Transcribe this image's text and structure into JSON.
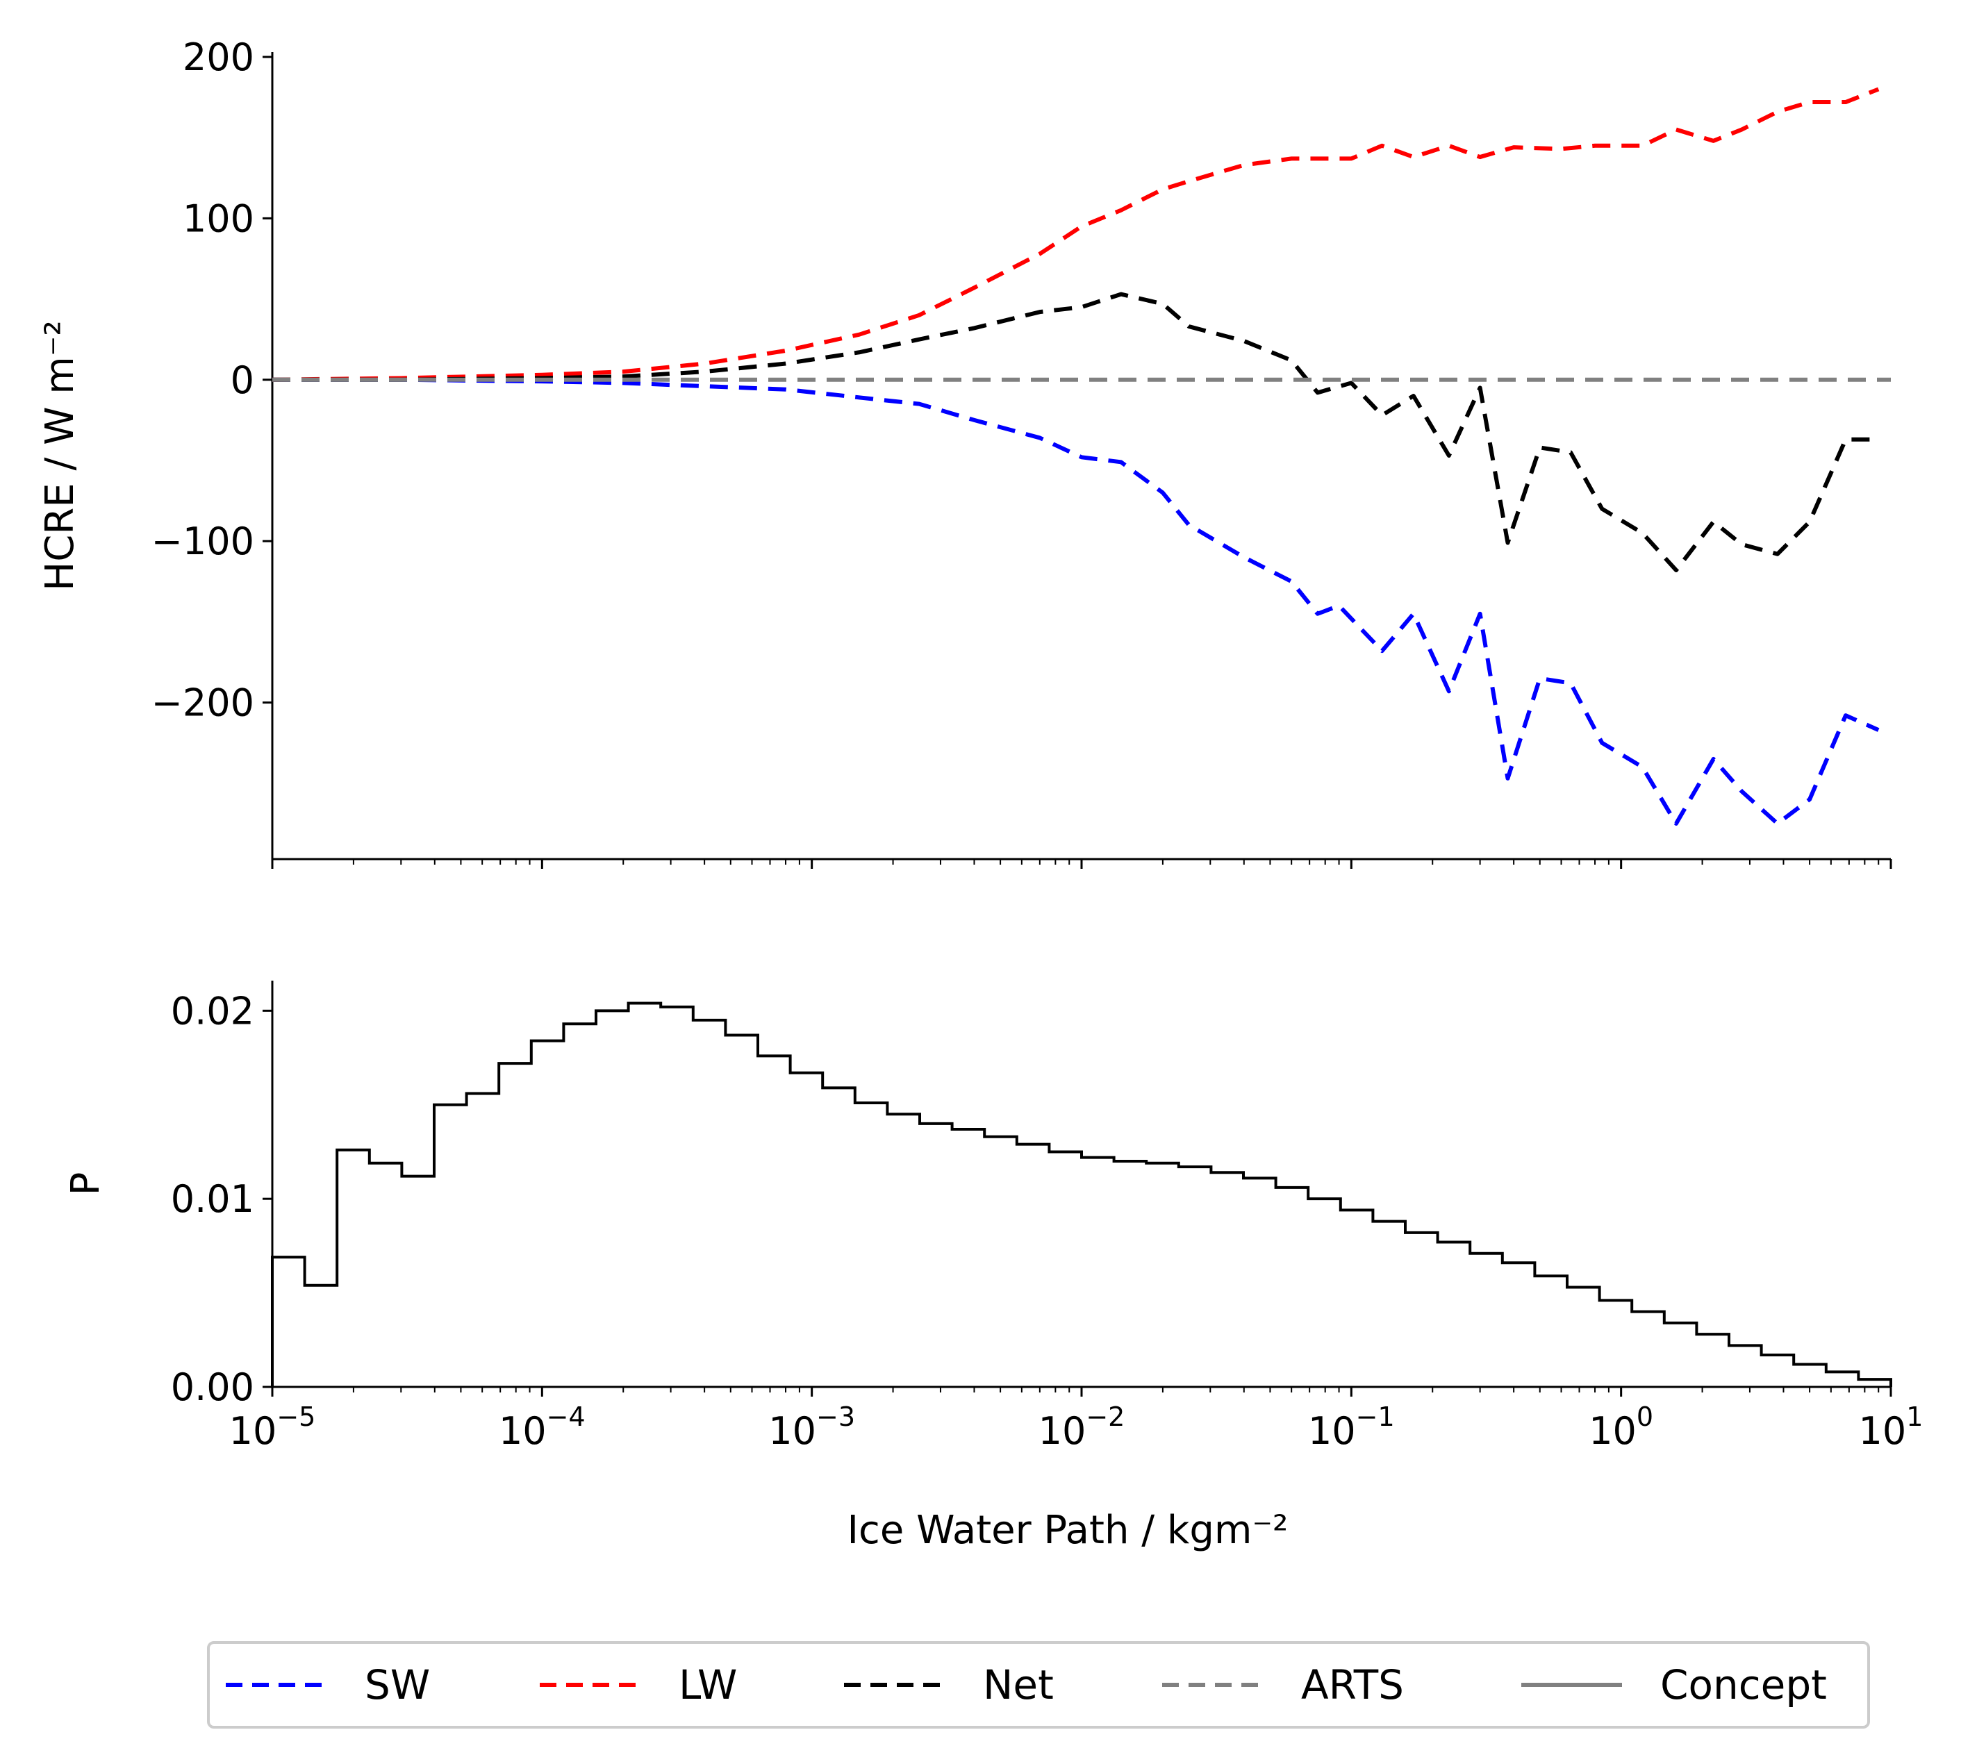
{
  "chart_data": [
    {
      "type": "line",
      "title": "",
      "xlabel": "",
      "ylabel": "HCRE / W m⁻²",
      "xscale": "log",
      "xlim": [
        1e-05,
        10
      ],
      "ylim": [
        -297,
        203
      ],
      "yticks": [
        {
          "value": 200,
          "label": "200"
        },
        {
          "value": 100,
          "label": "100"
        },
        {
          "value": 0,
          "label": "0"
        },
        {
          "value": -100,
          "label": "−100"
        },
        {
          "value": -200,
          "label": "−200"
        }
      ],
      "grid": false,
      "series": [
        {
          "name": "SW",
          "color": "#0000ff",
          "style": "dashed",
          "points": [
            [
              1e-05,
              0
            ],
            [
              3e-05,
              0
            ],
            [
              0.0001,
              -1
            ],
            [
              0.0002,
              -2
            ],
            [
              0.0004,
              -4
            ],
            [
              0.0008,
              -6
            ],
            [
              0.0015,
              -11
            ],
            [
              0.0025,
              -15
            ],
            [
              0.004,
              -25
            ],
            [
              0.007,
              -36
            ],
            [
              0.01,
              -48
            ],
            [
              0.014,
              -51
            ],
            [
              0.02,
              -70
            ],
            [
              0.025,
              -90
            ],
            [
              0.04,
              -110
            ],
            [
              0.06,
              -125
            ],
            [
              0.075,
              -145
            ],
            [
              0.09,
              -140
            ],
            [
              0.13,
              -168
            ],
            [
              0.17,
              -145
            ],
            [
              0.23,
              -193
            ],
            [
              0.3,
              -145
            ],
            [
              0.38,
              -247
            ],
            [
              0.5,
              -185
            ],
            [
              0.65,
              -188
            ],
            [
              0.85,
              -225
            ],
            [
              1.2,
              -240
            ],
            [
              1.6,
              -275
            ],
            [
              2.2,
              -235
            ],
            [
              2.8,
              -255
            ],
            [
              3.8,
              -275
            ],
            [
              5.0,
              -260
            ],
            [
              6.8,
              -208
            ],
            [
              9.0,
              -217
            ]
          ]
        },
        {
          "name": "LW",
          "color": "#ff0000",
          "style": "dashed",
          "points": [
            [
              1e-05,
              0
            ],
            [
              3e-05,
              1
            ],
            [
              0.0001,
              3
            ],
            [
              0.0002,
              5
            ],
            [
              0.0004,
              10
            ],
            [
              0.0008,
              18
            ],
            [
              0.0015,
              28
            ],
            [
              0.0025,
              40
            ],
            [
              0.004,
              57
            ],
            [
              0.007,
              78
            ],
            [
              0.01,
              95
            ],
            [
              0.014,
              105
            ],
            [
              0.02,
              118
            ],
            [
              0.025,
              123
            ],
            [
              0.04,
              133
            ],
            [
              0.06,
              137
            ],
            [
              0.08,
              137
            ],
            [
              0.1,
              137
            ],
            [
              0.13,
              145
            ],
            [
              0.17,
              138
            ],
            [
              0.23,
              145
            ],
            [
              0.3,
              138
            ],
            [
              0.4,
              144
            ],
            [
              0.6,
              143
            ],
            [
              0.8,
              145
            ],
            [
              1.2,
              145
            ],
            [
              1.6,
              155
            ],
            [
              2.2,
              148
            ],
            [
              2.8,
              155
            ],
            [
              3.8,
              166
            ],
            [
              5.0,
              172
            ],
            [
              6.8,
              172
            ],
            [
              9.0,
              180
            ]
          ]
        },
        {
          "name": "Net",
          "color": "#000000",
          "style": "dashed",
          "points": [
            [
              1e-05,
              0
            ],
            [
              3e-05,
              0
            ],
            [
              0.0001,
              1
            ],
            [
              0.0002,
              2
            ],
            [
              0.0004,
              5
            ],
            [
              0.0008,
              10
            ],
            [
              0.0015,
              17
            ],
            [
              0.0025,
              25
            ],
            [
              0.004,
              32
            ],
            [
              0.007,
              42
            ],
            [
              0.01,
              45
            ],
            [
              0.014,
              53
            ],
            [
              0.02,
              47
            ],
            [
              0.025,
              33
            ],
            [
              0.04,
              24
            ],
            [
              0.06,
              12
            ],
            [
              0.075,
              -8
            ],
            [
              0.1,
              -2
            ],
            [
              0.13,
              -22
            ],
            [
              0.17,
              -10
            ],
            [
              0.23,
              -47
            ],
            [
              0.3,
              -5
            ],
            [
              0.38,
              -101
            ],
            [
              0.5,
              -42
            ],
            [
              0.65,
              -45
            ],
            [
              0.85,
              -80
            ],
            [
              1.2,
              -95
            ],
            [
              1.6,
              -118
            ],
            [
              2.2,
              -88
            ],
            [
              2.8,
              -102
            ],
            [
              3.8,
              -108
            ],
            [
              5.0,
              -88
            ],
            [
              6.8,
              -37
            ],
            [
              9.0,
              -37
            ]
          ]
        },
        {
          "name": "ARTS",
          "color": "#808080",
          "style": "dashed",
          "points": [
            [
              1e-05,
              0
            ],
            [
              10,
              0
            ]
          ]
        }
      ]
    },
    {
      "type": "step",
      "title": "",
      "xlabel": "Ice Water Path / kgm⁻²",
      "ylabel": "P",
      "xscale": "log",
      "xlim": [
        1e-05,
        10
      ],
      "ylim": [
        0,
        0.0216
      ],
      "yticks": [
        {
          "value": 0,
          "label": "0.00"
        },
        {
          "value": 0.01,
          "label": "0.01"
        },
        {
          "value": 0.02,
          "label": "0.02"
        }
      ],
      "xticks": [
        {
          "value": 1e-05,
          "base": "10",
          "exp": "−5"
        },
        {
          "value": 0.0001,
          "base": "10",
          "exp": "−4"
        },
        {
          "value": 0.001,
          "base": "10",
          "exp": "−3"
        },
        {
          "value": 0.01,
          "base": "10",
          "exp": "−2"
        },
        {
          "value": 0.1,
          "base": "10",
          "exp": "−1"
        },
        {
          "value": 1,
          "base": "10",
          "exp": "0"
        },
        {
          "value": 10,
          "base": "10",
          "exp": "1"
        }
      ],
      "grid": false,
      "series": [
        {
          "name": "",
          "color": "#000000",
          "style": "steps",
          "values": [
            0.0069,
            0.0054,
            0.0126,
            0.0119,
            0.0112,
            0.015,
            0.0156,
            0.0172,
            0.0184,
            0.0193,
            0.02,
            0.0204,
            0.0202,
            0.0195,
            0.0187,
            0.0176,
            0.0167,
            0.0159,
            0.0151,
            0.0145,
            0.014,
            0.0137,
            0.0133,
            0.0129,
            0.0125,
            0.0122,
            0.012,
            0.0119,
            0.0117,
            0.0114,
            0.0111,
            0.0106,
            0.01,
            0.0094,
            0.0088,
            0.0082,
            0.0077,
            0.0071,
            0.0066,
            0.0059,
            0.0053,
            0.0046,
            0.004,
            0.0034,
            0.0028,
            0.0022,
            0.0017,
            0.0012,
            0.0008,
            0.0004
          ]
        }
      ]
    }
  ],
  "legend": {
    "placement": "bottom-center",
    "items": [
      {
        "label": "SW",
        "color": "#0000ff",
        "style": "dashed"
      },
      {
        "label": "LW",
        "color": "#ff0000",
        "style": "dashed"
      },
      {
        "label": "Net",
        "color": "#000000",
        "style": "dashed"
      },
      {
        "label": "ARTS",
        "color": "#808080",
        "style": "dashed"
      },
      {
        "label": "Concept",
        "color": "#808080",
        "style": "solid"
      }
    ]
  }
}
